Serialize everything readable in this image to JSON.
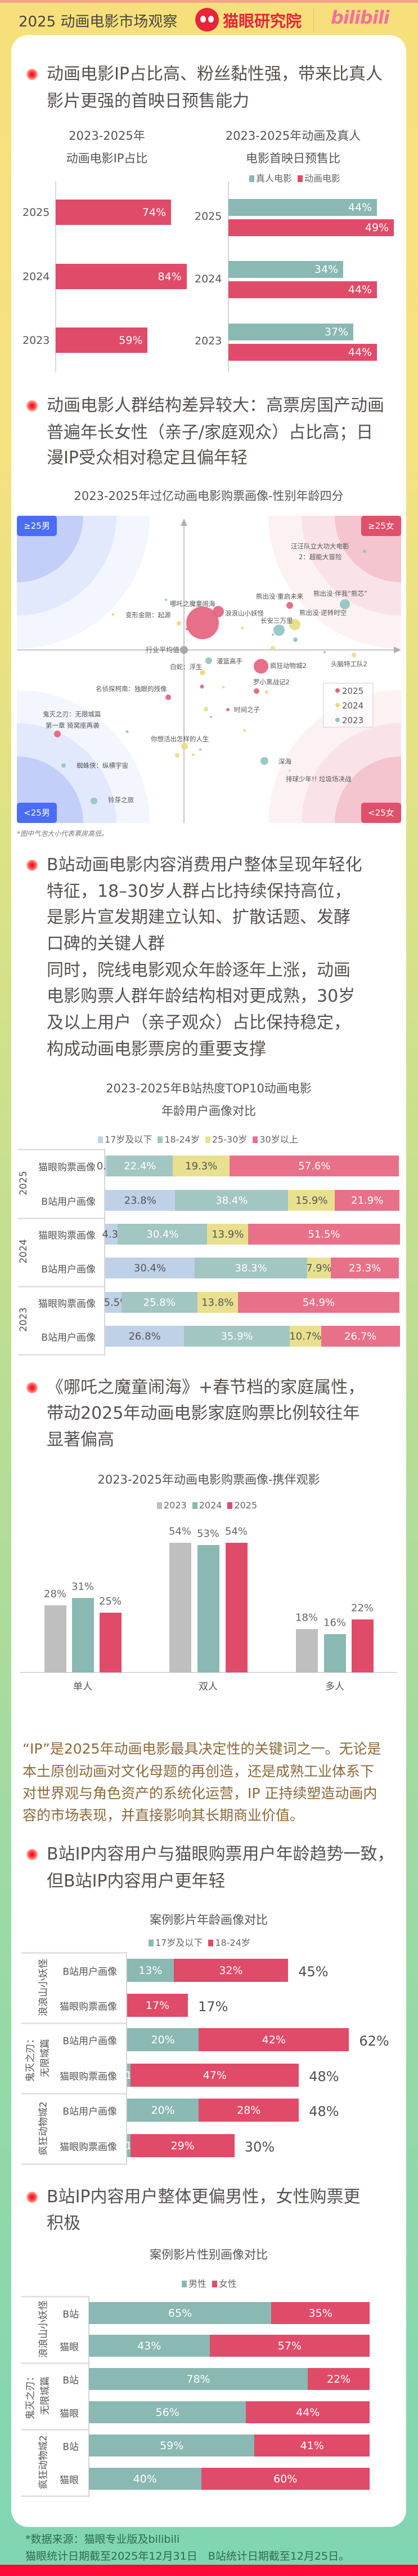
{
  "header": {
    "title": "2025 动画电影市场观察",
    "brand_maoyan": "猫眼研究院",
    "brand_bilibili": "bilibili"
  },
  "sections": {
    "s1": {
      "heading": [
        "动画电影IP占比高、粉丝黏性强，带来比真人",
        "影片更强的首映日预售能力"
      ]
    },
    "s2": {
      "heading": [
        "动画电影人群结构差异较大：高票房国产动画",
        "普遍年长女性（亲子/家庭观众）占比高；日",
        "漫IP受众相对稳定且偏年轻"
      ]
    },
    "s3": {
      "heading": [
        "B站动画电影内容消费用户整体呈现年轻化",
        "特征，18–30岁人群占比持续保持高位，",
        "是影片宣发期建立认知、扩散话题、发酵",
        "口碑的关键人群",
        "同时，院线电影观众年龄逐年上涨，动画",
        "电影购票人群年龄结构相对更成熟，30岁",
        "及以上用户（亲子观众）占比保持稳定，",
        "构成动画电影票房的重要支撑"
      ]
    },
    "s4": {
      "heading": [
        "《哪吒之魔童闹海》+春节档的家庭属性，",
        "带动2025年动画电影家庭购票比例较往年",
        "显著偏高"
      ]
    },
    "ip_paragraph": [
      "“IP”是2025年动画电影最具决定性的关键词之一。无论是",
      "本土原创动画对文化母题的再创造，还是成熟工业体系下",
      "对世界观与角色资产的系统化运营，IP 正持续塑造动画内",
      "容的市场表现，并直接影响其长期商业价值。"
    ],
    "s5": {
      "heading": [
        "B站IP内容用户与猫眼购票用户年龄趋势一致，",
        "但B站IP内容用户更年轻"
      ]
    },
    "s6": {
      "heading": [
        "B站IP内容用户整体更偏男性，女性购票更",
        "积极"
      ]
    }
  },
  "footer": {
    "source": "*数据来源：猫眼专业版及bilibili",
    "dates": "猫眼统计日期截至2025年12月31日　B站统计日期截至12月25日。"
  },
  "colors": {
    "red": "#e04b69",
    "teal": "#8ab8b3",
    "gray": "#bfbfbf",
    "age_17": "#bfd1e6",
    "age_18_24": "#a2c6c2",
    "age_25_30": "#e8e08f",
    "age_30p": "#e87189",
    "bubble_2025": "#e5637e",
    "bubble_2024": "#e8dc84",
    "bubble_2023": "#93c4c0",
    "male_quadrant": "#4a6cf7",
    "female_quadrant": "#e0506a"
  },
  "chart_data": [
    {
      "id": "ip_share",
      "type": "bar",
      "orientation": "horizontal",
      "title": [
        "2023-2025年",
        "动画电影IP占比"
      ],
      "categories": [
        "2025",
        "2024",
        "2023"
      ],
      "values": [
        74,
        84,
        59
      ],
      "labels": [
        "74%",
        "84%",
        "59%"
      ],
      "unit": "%"
    },
    {
      "id": "presale",
      "type": "bar",
      "orientation": "horizontal",
      "title": [
        "2023-2025年动画及真人",
        "电影首映日预售比"
      ],
      "categories": [
        "2025",
        "2024",
        "2023"
      ],
      "legend": "top",
      "series": [
        {
          "name": "真人电影",
          "values": [
            44,
            34,
            37
          ],
          "labels": [
            "44%",
            "34%",
            "37%"
          ]
        },
        {
          "name": "动画电影",
          "values": [
            49,
            44,
            44
          ],
          "labels": [
            "49%",
            "44%",
            "44%"
          ]
        }
      ],
      "unit": "%"
    },
    {
      "id": "quadrant",
      "type": "scatter",
      "title": "2023-2025年过亿动画电影购票画像-性别年龄四分",
      "quadrants": {
        "top_left": "≥25男",
        "top_right": "≥25女",
        "bottom_left": "<25男",
        "bottom_right": "<25女"
      },
      "average_label": "行业平均值",
      "legend": [
        "2025",
        "2024",
        "2023"
      ],
      "legend_position": "bottom-right",
      "note": "*图中气泡大小代表票房高低。",
      "x_meaning": "female share relative to average",
      "y_meaning": "age relative to average",
      "points": [
        {
          "year": "2025",
          "label": "哪吒之魔童闹海",
          "x": 0.33,
          "y": 0.48,
          "size": 29
        },
        {
          "year": "2025",
          "label": "浪浪山小妖怪",
          "x": 0.61,
          "y": 0.68,
          "size": 10
        },
        {
          "year": "2025",
          "label": "",
          "x": 0.05,
          "y": 0.37,
          "size": 2
        },
        {
          "year": "2025",
          "label": "熊出没·重启未来",
          "x": 1.88,
          "y": 0.79,
          "size": 6
        },
        {
          "year": "2025",
          "label": "疯狂动物城2",
          "x": 1.37,
          "y": -0.29,
          "size": 13
        },
        {
          "year": "2025",
          "label": "",
          "x": 0.32,
          "y": -0.65,
          "size": 3.5
        },
        {
          "year": "2025",
          "label": "罗小黑战记2",
          "x": 1.29,
          "y": -0.73,
          "size": 5
        },
        {
          "year": "2025",
          "label": "名侦探柯南：独眼的残像",
          "x": -0.28,
          "y": -0.84,
          "size": 5
        },
        {
          "year": "2025",
          "label": "时间之子",
          "x": 0.78,
          "y": -1.06,
          "size": 3
        },
        {
          "year": "2025",
          "label": [
            "鬼灭之刃：无限城篇",
            "第一章 猗窝座再袭"
          ],
          "x": -2.25,
          "y": -1.49,
          "size": 6
        },
        {
          "year": "2024",
          "label": "变形金刚：起源",
          "x": -1.26,
          "y": 0.63,
          "size": 2.5
        },
        {
          "year": "2024",
          "label": "",
          "x": -0.09,
          "y": 0.47,
          "size": 4
        },
        {
          "year": "2024",
          "label": "熊出没·逆转时空",
          "x": 1.97,
          "y": 0.45,
          "size": 10
        },
        {
          "year": "2024",
          "label": "",
          "x": 1.04,
          "y": 0.39,
          "size": 2.5
        },
        {
          "year": "2024",
          "label": "",
          "x": 1.58,
          "y": 0.03,
          "size": 4
        },
        {
          "year": "2024",
          "label": "头脑特工队2",
          "x": 3.02,
          "y": -0.09,
          "size": 4
        },
        {
          "year": "2024",
          "label": "白蛇：浮生",
          "x": 0.33,
          "y": -0.4,
          "size": 5
        },
        {
          "year": "2024",
          "label": "",
          "x": 0.7,
          "y": -0.66,
          "size": 2.5
        },
        {
          "year": "2024",
          "label": "",
          "x": 1.47,
          "y": -0.75,
          "size": 3
        },
        {
          "year": "2024",
          "label": "",
          "x": 0.39,
          "y": -1.05,
          "size": 4
        },
        {
          "year": "2024",
          "label": "",
          "x": 1.08,
          "y": -1.43,
          "size": 2.5
        },
        {
          "year": "2024",
          "label": "你想活出怎样的人生",
          "x": 0.01,
          "y": -1.71,
          "size": 6
        },
        {
          "year": "2024",
          "label": "",
          "x": -0.12,
          "y": -1.87,
          "size": 4
        },
        {
          "year": "2024",
          "label": "",
          "x": 0.16,
          "y": -1.86,
          "size": 2.5
        },
        {
          "year": "2024",
          "label": "排球少年!! 垃圾场决战",
          "x": 1.88,
          "y": -2.14,
          "size": 2
        },
        {
          "year": "2023",
          "label": "",
          "x": -0.32,
          "y": 0.89,
          "size": 2
        },
        {
          "year": "2023",
          "label": [
            "汪汪队立大功大电影",
            "2：超能大冒险"
          ],
          "x": 3.21,
          "y": 1.75,
          "size": 3
        },
        {
          "year": "2023",
          "label": "熊出没·伴我“熊芯”",
          "x": 2.86,
          "y": 0.81,
          "size": 9
        },
        {
          "year": "2023",
          "label": "长安三万里",
          "x": 1.69,
          "y": 0.35,
          "size": 10
        },
        {
          "year": "2023",
          "label": "",
          "x": 1.58,
          "y": 0.27,
          "size": 2
        },
        {
          "year": "2023",
          "label": "",
          "x": 1.98,
          "y": 0.18,
          "size": 4
        },
        {
          "year": "2023",
          "label": "",
          "x": 2.5,
          "y": -0.04,
          "size": 2
        },
        {
          "year": "2023",
          "label": "灌篮高手",
          "x": 0.44,
          "y": -0.19,
          "size": 6
        },
        {
          "year": "2023",
          "label": "",
          "x": 0.48,
          "y": -1.19,
          "size": 2
        },
        {
          "year": "2023",
          "label": "",
          "x": -1.01,
          "y": -1.45,
          "size": 2.5
        },
        {
          "year": "2023",
          "label": "",
          "x": 0.29,
          "y": -1.77,
          "size": 2
        },
        {
          "year": "2023",
          "label": "蜘蛛侠：纵横宇宙",
          "x": -2.14,
          "y": -2.05,
          "size": 4
        },
        {
          "year": "2023",
          "label": "铃芽之旅",
          "x": -1.6,
          "y": -2.68,
          "size": 6
        },
        {
          "year": "2023",
          "label": "深海",
          "x": 1.43,
          "y": -1.97,
          "size": 7
        }
      ]
    },
    {
      "id": "bili_age",
      "type": "bar",
      "stacked": true,
      "orientation": "horizontal",
      "title": [
        "2023-2025年B站热度TOP10动画电影",
        "年龄用户画像对比"
      ],
      "legend": [
        "17岁及以下",
        "18-24岁",
        "25-30岁",
        "30岁以上"
      ],
      "groups": [
        {
          "year": "2025",
          "rows": [
            {
              "label": "猫眼购票画像",
              "values": [
                0.6,
                22.4,
                19.3,
                57.6
              ]
            },
            {
              "label": "B站用户画像",
              "values": [
                23.8,
                38.4,
                15.9,
                21.9
              ]
            }
          ]
        },
        {
          "year": "2024",
          "rows": [
            {
              "label": "猫眼购票画像",
              "values": [
                4.3,
                30.4,
                13.9,
                51.5
              ]
            },
            {
              "label": "B站用户画像",
              "values": [
                30.4,
                38.3,
                7.9,
                23.3
              ]
            }
          ]
        },
        {
          "year": "2023",
          "rows": [
            {
              "label": "猫眼购票画像",
              "values": [
                5.5,
                25.8,
                13.8,
                54.9
              ]
            },
            {
              "label": "B站用户画像",
              "values": [
                26.8,
                35.9,
                10.7,
                26.7
              ]
            }
          ]
        }
      ],
      "unit": "%"
    },
    {
      "id": "companion",
      "type": "bar",
      "title": "2023-2025年动画电影购票画像-携伴观影",
      "categories": [
        "单人",
        "双人",
        "多人"
      ],
      "series": [
        {
          "name": "2023",
          "values": [
            28,
            54,
            18
          ]
        },
        {
          "name": "2024",
          "values": [
            31,
            53,
            16
          ]
        },
        {
          "name": "2025",
          "values": [
            25,
            54,
            22
          ]
        }
      ],
      "unit": "%",
      "legend": "top"
    },
    {
      "id": "case_age",
      "type": "bar",
      "stacked": true,
      "orientation": "horizontal",
      "title": "案例影片年龄画像对比",
      "legend": [
        "17岁及以下",
        "18-24岁"
      ],
      "groups": [
        {
          "film": [
            "浪浪山小妖怪"
          ],
          "rows": [
            {
              "label": "B站用户画像",
              "values": [
                13,
                32
              ],
              "total": "45%"
            },
            {
              "label": "猫眼购票画像",
              "values": [
                0,
                17
              ],
              "total": "17%"
            }
          ]
        },
        {
          "film": [
            "鬼灭之刃：",
            "无限城篇"
          ],
          "rows": [
            {
              "label": "B站用户画像",
              "values": [
                20,
                42
              ],
              "total": "62%"
            },
            {
              "label": "猫眼购票画像",
              "values": [
                1,
                47
              ],
              "total": "48%"
            }
          ]
        },
        {
          "film": [
            "疯狂动物城2"
          ],
          "rows": [
            {
              "label": "B站用户画像",
              "values": [
                20,
                28
              ],
              "total": "48%"
            },
            {
              "label": "猫眼购票画像",
              "values": [
                1,
                29
              ],
              "total": "30%"
            }
          ]
        }
      ],
      "unit": "%"
    },
    {
      "id": "case_gender",
      "type": "bar",
      "stacked": true,
      "orientation": "horizontal",
      "title": "案例影片性别画像对比",
      "legend": [
        "男性",
        "女性"
      ],
      "groups": [
        {
          "film": [
            "浪浪山小妖怪"
          ],
          "rows": [
            {
              "label": "B站",
              "values": [
                65,
                35
              ]
            },
            {
              "label": "猫眼",
              "values": [
                43,
                57
              ]
            }
          ]
        },
        {
          "film": [
            "鬼灭之刃：",
            "无限城篇"
          ],
          "rows": [
            {
              "label": "B站",
              "values": [
                78,
                22
              ]
            },
            {
              "label": "猫眼",
              "values": [
                56,
                44
              ]
            }
          ]
        },
        {
          "film": [
            "疯狂动物城2"
          ],
          "rows": [
            {
              "label": "B站",
              "values": [
                59,
                41
              ]
            },
            {
              "label": "猫眼",
              "values": [
                40,
                60
              ]
            }
          ]
        }
      ],
      "unit": "%"
    }
  ]
}
